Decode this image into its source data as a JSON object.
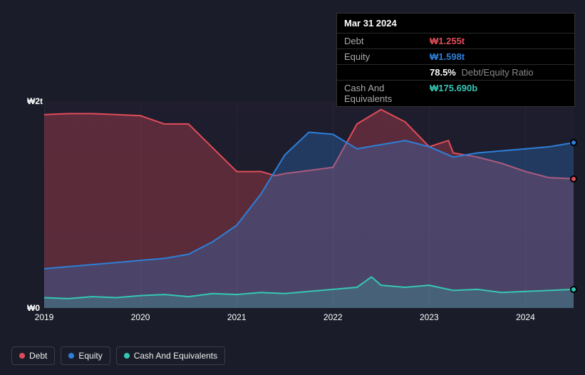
{
  "tooltip": {
    "date": "Mar 31 2024",
    "rows": [
      {
        "label": "Debt",
        "value": "₩1.255t",
        "color": "#e04c59"
      },
      {
        "label": "Equity",
        "value": "₩1.598t",
        "color": "#2d7fd8"
      },
      {
        "label": "",
        "value": "78.5%",
        "suffix": "Debt/Equity Ratio",
        "color": "#ffffff"
      },
      {
        "label": "Cash And Equivalents",
        "value": "₩175.690b",
        "color": "#35c7b3"
      }
    ]
  },
  "chart": {
    "type": "area",
    "background_gradient": [
      "rgba(40,30,55,0.35)",
      "rgba(25,28,40,0.2)"
    ],
    "y_axis": {
      "labels": [
        {
          "text": "₩2t",
          "y": 0
        },
        {
          "text": "₩0",
          "y": 1
        }
      ],
      "min": 0,
      "max": 2,
      "unit": "t₩"
    },
    "x_axis": {
      "min": 2019,
      "max": 2024.5,
      "ticks": [
        2019,
        2020,
        2021,
        2022,
        2023,
        2024
      ]
    },
    "series": [
      {
        "name": "Debt",
        "color": "#e04c59",
        "fill_opacity": 0.32,
        "line_width": 2,
        "data": [
          [
            2019.0,
            1.87
          ],
          [
            2019.25,
            1.88
          ],
          [
            2019.5,
            1.88
          ],
          [
            2019.75,
            1.87
          ],
          [
            2020.0,
            1.86
          ],
          [
            2020.25,
            1.78
          ],
          [
            2020.5,
            1.78
          ],
          [
            2020.75,
            1.55
          ],
          [
            2021.0,
            1.32
          ],
          [
            2021.25,
            1.32
          ],
          [
            2021.4,
            1.28
          ],
          [
            2021.5,
            1.3
          ],
          [
            2022.0,
            1.36
          ],
          [
            2022.25,
            1.78
          ],
          [
            2022.5,
            1.92
          ],
          [
            2022.75,
            1.8
          ],
          [
            2023.0,
            1.56
          ],
          [
            2023.2,
            1.62
          ],
          [
            2023.25,
            1.5
          ],
          [
            2023.5,
            1.46
          ],
          [
            2023.75,
            1.4
          ],
          [
            2024.0,
            1.32
          ],
          [
            2024.25,
            1.26
          ],
          [
            2024.5,
            1.25
          ]
        ],
        "marker_end": [
          2024.5,
          1.25
        ]
      },
      {
        "name": "Equity",
        "color": "#2d7fd8",
        "fill_opacity": 0.3,
        "line_width": 2,
        "data": [
          [
            2019.0,
            0.38
          ],
          [
            2019.25,
            0.4
          ],
          [
            2019.5,
            0.42
          ],
          [
            2019.75,
            0.44
          ],
          [
            2020.0,
            0.46
          ],
          [
            2020.25,
            0.48
          ],
          [
            2020.5,
            0.52
          ],
          [
            2020.75,
            0.64
          ],
          [
            2021.0,
            0.8
          ],
          [
            2021.25,
            1.1
          ],
          [
            2021.5,
            1.48
          ],
          [
            2021.75,
            1.7
          ],
          [
            2022.0,
            1.68
          ],
          [
            2022.25,
            1.54
          ],
          [
            2022.5,
            1.58
          ],
          [
            2022.75,
            1.62
          ],
          [
            2023.0,
            1.56
          ],
          [
            2023.25,
            1.46
          ],
          [
            2023.5,
            1.5
          ],
          [
            2023.75,
            1.52
          ],
          [
            2024.0,
            1.54
          ],
          [
            2024.25,
            1.56
          ],
          [
            2024.5,
            1.6
          ]
        ],
        "marker_end": [
          2024.5,
          1.6
        ]
      },
      {
        "name": "Cash And Equivalents",
        "color": "#35c7b3",
        "fill_opacity": 0.22,
        "line_width": 2,
        "data": [
          [
            2019.0,
            0.1
          ],
          [
            2019.25,
            0.09
          ],
          [
            2019.5,
            0.11
          ],
          [
            2019.75,
            0.1
          ],
          [
            2020.0,
            0.12
          ],
          [
            2020.25,
            0.13
          ],
          [
            2020.5,
            0.11
          ],
          [
            2020.75,
            0.14
          ],
          [
            2021.0,
            0.13
          ],
          [
            2021.25,
            0.15
          ],
          [
            2021.5,
            0.14
          ],
          [
            2021.75,
            0.16
          ],
          [
            2022.0,
            0.18
          ],
          [
            2022.25,
            0.2
          ],
          [
            2022.4,
            0.3
          ],
          [
            2022.5,
            0.22
          ],
          [
            2022.75,
            0.2
          ],
          [
            2023.0,
            0.22
          ],
          [
            2023.25,
            0.17
          ],
          [
            2023.5,
            0.18
          ],
          [
            2023.75,
            0.15
          ],
          [
            2024.0,
            0.16
          ],
          [
            2024.25,
            0.17
          ],
          [
            2024.5,
            0.18
          ]
        ],
        "marker_end": [
          2024.5,
          0.18
        ]
      }
    ]
  },
  "legend": [
    {
      "label": "Debt",
      "color": "#e04c59"
    },
    {
      "label": "Equity",
      "color": "#2d7fd8"
    },
    {
      "label": "Cash And Equivalents",
      "color": "#35c7b3"
    }
  ]
}
